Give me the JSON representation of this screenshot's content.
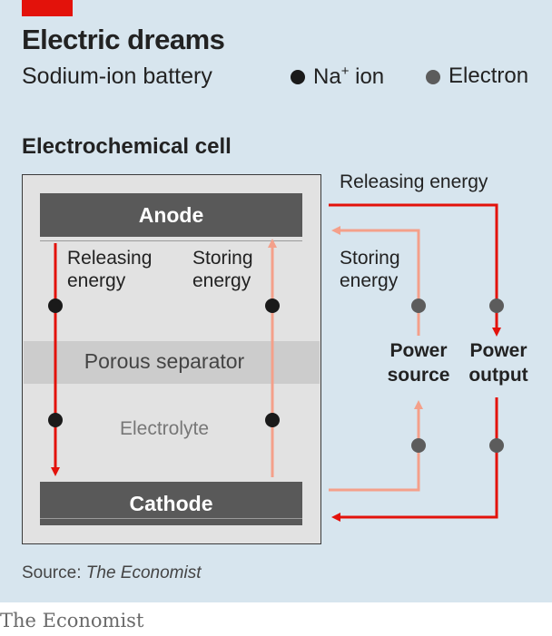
{
  "header": {
    "title": "Electric dreams",
    "subtitle": "Sodium-ion battery",
    "section_title": "Electrochemical cell"
  },
  "legend": {
    "ion": {
      "label": "Na",
      "superscript": "+",
      "suffix": " ion",
      "color": "#1a1a1a"
    },
    "electron": {
      "label": "Electron",
      "color": "#5c5c5c"
    }
  },
  "cell": {
    "anode": "Anode",
    "cathode": "Cathode",
    "separator": "Porous separator",
    "electrolyte": "Electrolyte",
    "releasing_inside": [
      "Releasing",
      "energy"
    ],
    "storing_inside": [
      "Storing",
      "energy"
    ]
  },
  "circuit": {
    "releasing_label": "Releasing energy",
    "storing_label": [
      "Storing",
      "energy"
    ],
    "power_source": [
      "Power",
      "source"
    ],
    "power_output": [
      "Power",
      "output"
    ]
  },
  "colors": {
    "background": "#d7e5ee",
    "releasing": "#e3120b",
    "storing": "#f4a08a",
    "electrode": "#595959",
    "separator": "#cccccc",
    "cell": "#e2e2e2",
    "brand_tag": "#e3120b"
  },
  "footer": {
    "source_prefix": "Source: ",
    "source_name": "The Economist",
    "brand": "The Economist"
  }
}
